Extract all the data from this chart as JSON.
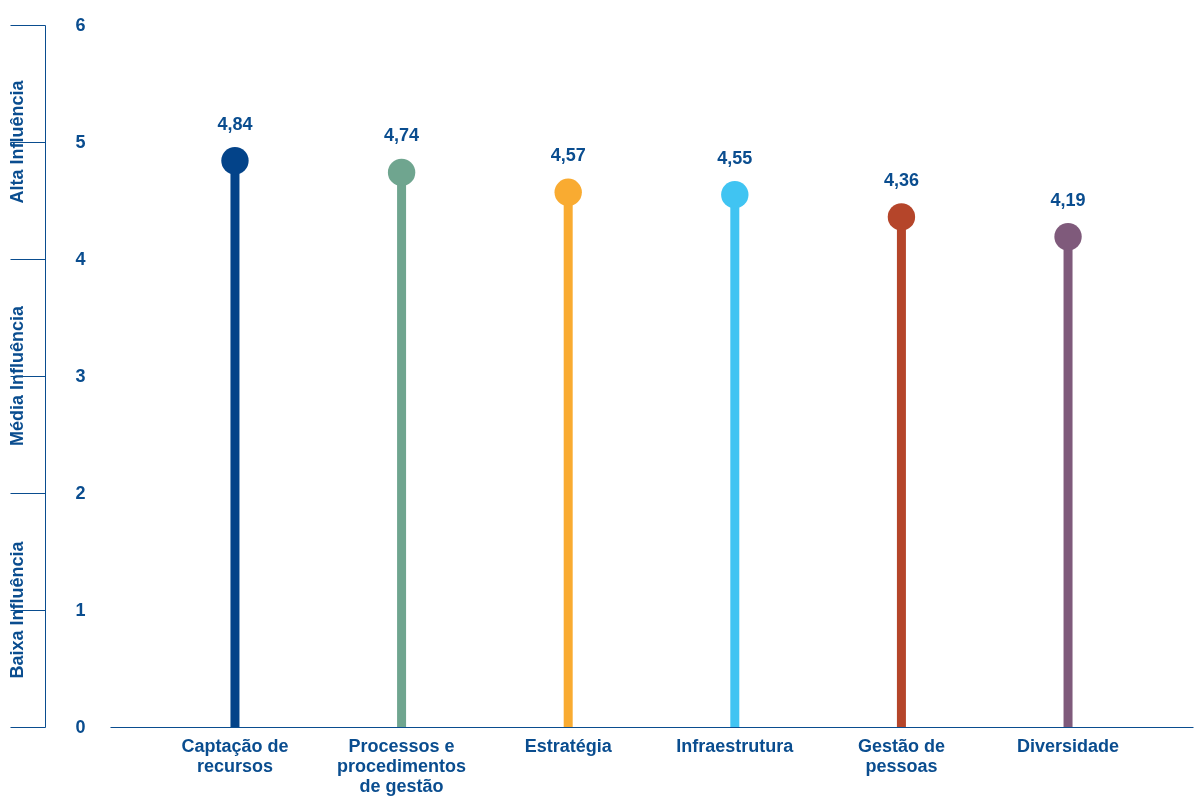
{
  "chart_data": {
    "type": "lollipop",
    "categories": [
      "Captação de recursos",
      "Processos e procedimentos de gestão",
      "Estratégia",
      "Infraestrutura",
      "Gestão de pessoas",
      "Diversidade"
    ],
    "values": [
      4.84,
      4.74,
      4.57,
      4.55,
      4.36,
      4.19
    ],
    "colors": [
      "#034389",
      "#6fa58f",
      "#f9ab31",
      "#40c4f2",
      "#b5452a",
      "#7f5a7b"
    ],
    "ylim": [
      0,
      6
    ],
    "yticks": [
      0,
      1,
      2,
      3,
      4,
      5,
      6
    ],
    "annotations": [
      "Alta Influência",
      "Média Influência",
      "Baixa Influência"
    ],
    "value_labels": [
      "4,84",
      "4,74",
      "4,57",
      "4,55",
      "4,36",
      "4,19"
    ],
    "grid": false
  }
}
